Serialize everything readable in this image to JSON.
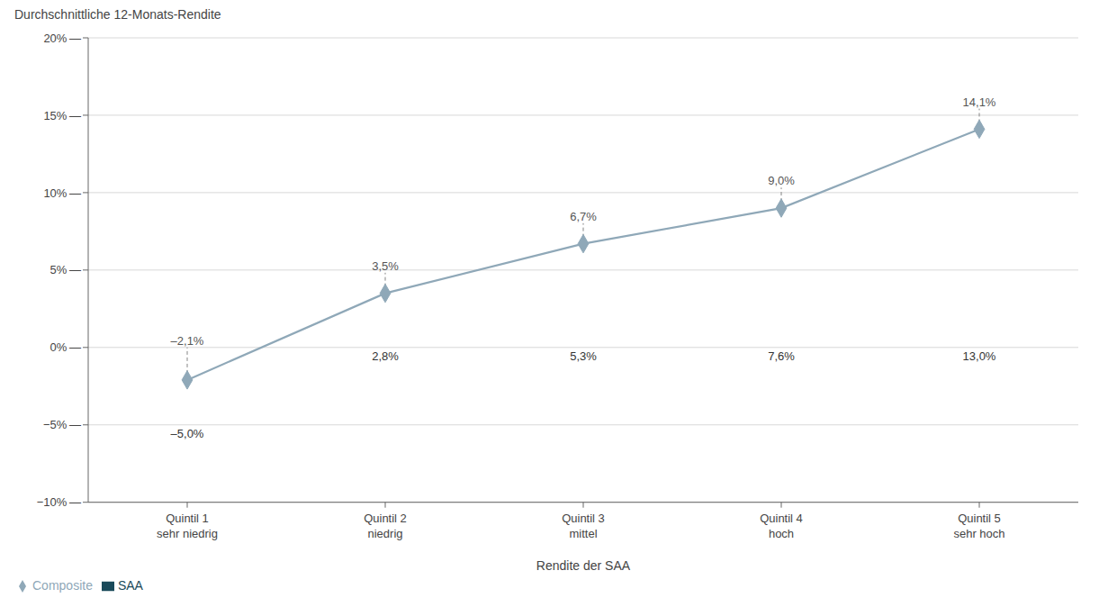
{
  "chart_data": {
    "type": "bar",
    "xlabel": "Rendite der SAA",
    "ylabel": "Durchschnittliche 12-Monats-Rendite",
    "categories": [
      "Quintil 1\nsehr niedrig",
      "Quintil 2\nniedrig",
      "Quintil 3\nmittel",
      "Quintil 4\nhoch",
      "Quintil 5\nsehr hoch"
    ],
    "series": [
      {
        "name": "SAA",
        "type": "bar",
        "color": "#1a4a5a",
        "values": [
          -5.0,
          2.8,
          5.3,
          7.6,
          13.0
        ],
        "value_labels": [
          "–5,0%",
          "2,8%",
          "5,3%",
          "7,6%",
          "13,0%"
        ]
      },
      {
        "name": "Composite",
        "type": "line",
        "color": "#8fa8b8",
        "marker": "diamond",
        "values": [
          -2.1,
          3.5,
          6.7,
          9.0,
          14.1
        ],
        "value_labels": [
          "–2,1%",
          "3,5%",
          "6,7%",
          "9,0%",
          "14,1%"
        ]
      }
    ],
    "ylim": [
      -10,
      20
    ],
    "yticks": [
      {
        "value": -10,
        "label": "−10% —"
      },
      {
        "value": -5,
        "label": "−5% —"
      },
      {
        "value": 0,
        "label": "0% —"
      },
      {
        "value": 5,
        "label": "5% —"
      },
      {
        "value": 10,
        "label": "10% —"
      },
      {
        "value": 15,
        "label": "15% —"
      },
      {
        "value": 20,
        "label": "20% —"
      }
    ],
    "grid": true,
    "legend": "lower left",
    "data_labels": true
  }
}
